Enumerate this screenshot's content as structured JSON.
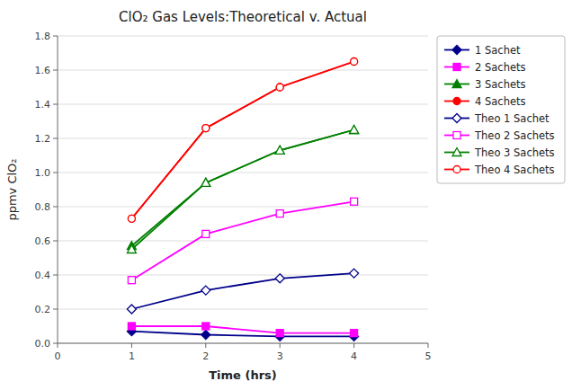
{
  "chart_data": {
    "type": "line",
    "title": "ClO₂ Gas Levels:Theoretical v. Actual",
    "xlabel": "Time (hrs)",
    "ylabel": "ppmv ClO₂",
    "x": [
      1,
      2,
      3,
      4
    ],
    "xlim": [
      0,
      5
    ],
    "xticks": [
      0,
      1,
      2,
      3,
      4,
      5
    ],
    "ylim": [
      0,
      1.8
    ],
    "yticks": [
      {
        "value": 0,
        "label": "0.0"
      },
      0.2,
      0.4,
      0.6,
      0.8,
      {
        "value": 1.0,
        "label": "1.0"
      },
      1.2,
      1.4,
      1.6,
      1.8
    ],
    "grid": "y",
    "legend": "right",
    "series": [
      {
        "name": "1 Sachet",
        "color": "#00008B",
        "marker": "diamond",
        "values": [
          0.07,
          0.05,
          0.04,
          0.04
        ]
      },
      {
        "name": "2 Sachets",
        "color": "#FF00FF",
        "marker": "square",
        "values": [
          0.1,
          0.1,
          0.06,
          0.06
        ]
      },
      {
        "name": "3 Sachets",
        "color": "#008000",
        "marker": "triangle",
        "values": [
          0.57,
          0.94,
          1.13,
          1.25
        ]
      },
      {
        "name": "4 Sachets",
        "color": "#FF0000",
        "marker": "circle",
        "values": [
          0.73,
          1.26,
          1.5,
          1.65
        ]
      },
      {
        "name": "Theo 1 Sachet",
        "color": "#00008B",
        "marker": "open-diamond",
        "values": [
          0.2,
          0.31,
          0.38,
          0.41
        ]
      },
      {
        "name": "Theo 2 Sachets",
        "color": "#FF00FF",
        "marker": "open-square",
        "values": [
          0.37,
          0.64,
          0.76,
          0.83
        ]
      },
      {
        "name": "Theo 3 Sachets",
        "color": "#008000",
        "marker": "open-triangle",
        "values": [
          0.55,
          0.94,
          1.13,
          1.25
        ]
      },
      {
        "name": "Theo 4 Sachets",
        "color": "#FF0000",
        "marker": "open-circle",
        "values": [
          0.73,
          1.26,
          1.5,
          1.65
        ]
      }
    ]
  }
}
